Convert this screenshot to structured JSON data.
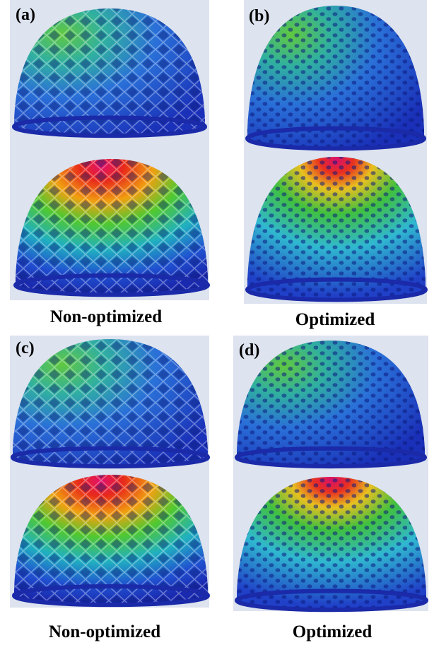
{
  "panels": [
    {
      "label": "(a)",
      "caption": "Non-optimized"
    },
    {
      "label": "(b)",
      "caption": "Optimized"
    },
    {
      "label": "(c)",
      "caption": "Non-optimized"
    },
    {
      "label": "(d)",
      "caption": "Optimized"
    }
  ]
}
